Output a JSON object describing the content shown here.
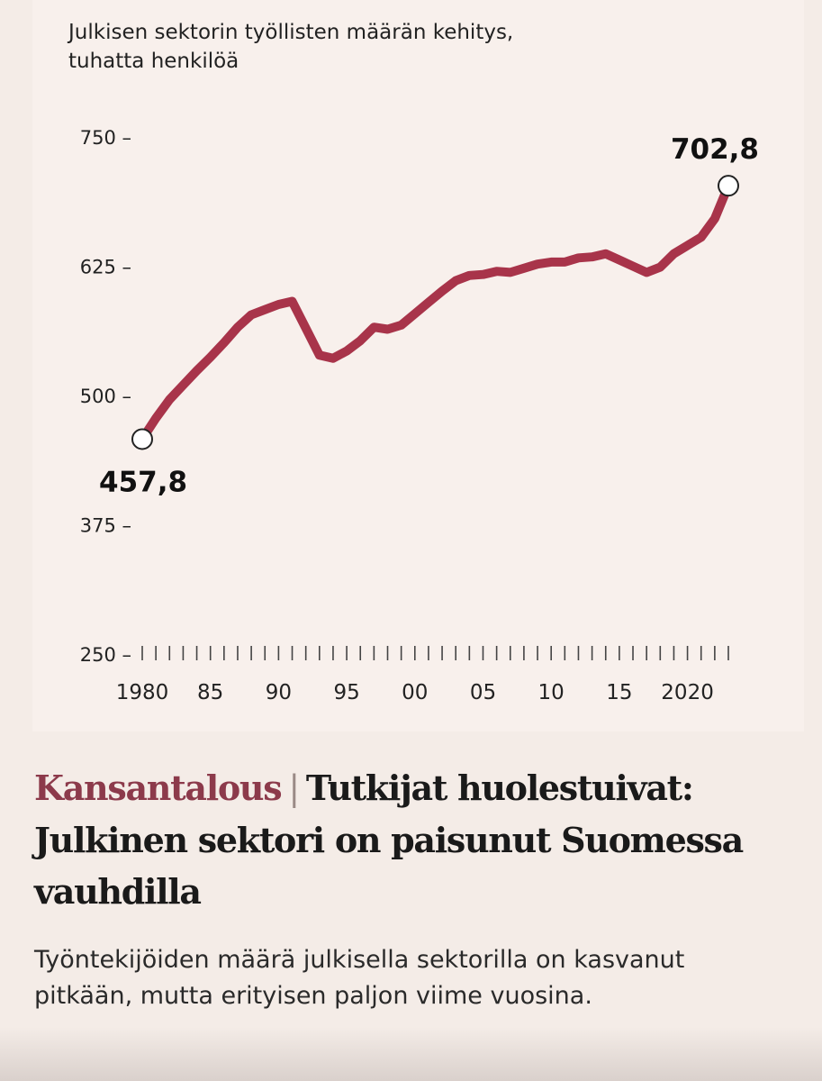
{
  "chart_data": {
    "type": "line",
    "title": "Julkisen sektorin työllisten määrän kehitys, tuhatta henkilöä",
    "xlabel": "",
    "ylabel": "",
    "ylim": [
      250,
      750
    ],
    "yticks": [
      250,
      375,
      500,
      625,
      750
    ],
    "ytick_labels": [
      "250",
      "375",
      "500",
      "625",
      "750"
    ],
    "xlim": [
      1980,
      2023
    ],
    "xtick_values": [
      1980,
      1985,
      1990,
      1995,
      2000,
      2005,
      2010,
      2015,
      2020
    ],
    "xtick_labels": [
      "1980",
      "85",
      "90",
      "95",
      "00",
      "05",
      "10",
      "15",
      "2020"
    ],
    "series": [
      {
        "color": "#a8344a",
        "x": [
          1980,
          1981,
          1982,
          1983,
          1984,
          1985,
          1986,
          1987,
          1988,
          1989,
          1990,
          1991,
          1992,
          1993,
          1994,
          1995,
          1996,
          1997,
          1998,
          1999,
          2000,
          2001,
          2002,
          2003,
          2004,
          2005,
          2006,
          2007,
          2008,
          2009,
          2010,
          2011,
          2012,
          2013,
          2014,
          2015,
          2016,
          2017,
          2018,
          2019,
          2020,
          2021,
          2022,
          2023
        ],
        "values": [
          457.8,
          478,
          496,
          510,
          524,
          537,
          551,
          566,
          578,
          583,
          588,
          591,
          565,
          539,
          536,
          543,
          553,
          566,
          564,
          568,
          579,
          590,
          601,
          611,
          616,
          617,
          620,
          619,
          623,
          627,
          629,
          629,
          633,
          634,
          637,
          631,
          625,
          619,
          624,
          637,
          645,
          653,
          671,
          702.8
        ]
      }
    ],
    "annotations": [
      {
        "x": 1980,
        "y": 457.8,
        "label": "457,8"
      },
      {
        "x": 2023,
        "y": 702.8,
        "label": "702,8"
      }
    ]
  },
  "headline": {
    "section": "Kansantalous",
    "separator": "|",
    "title": "Tutkijat huolestuivat: Julkinen sektori on paisunut Suomessa vauhdilla"
  },
  "lede": "Työntekijöiden määrä julkisella sektorilla on kasvanut pitkään, mutta erityisen paljon viime vuosina."
}
